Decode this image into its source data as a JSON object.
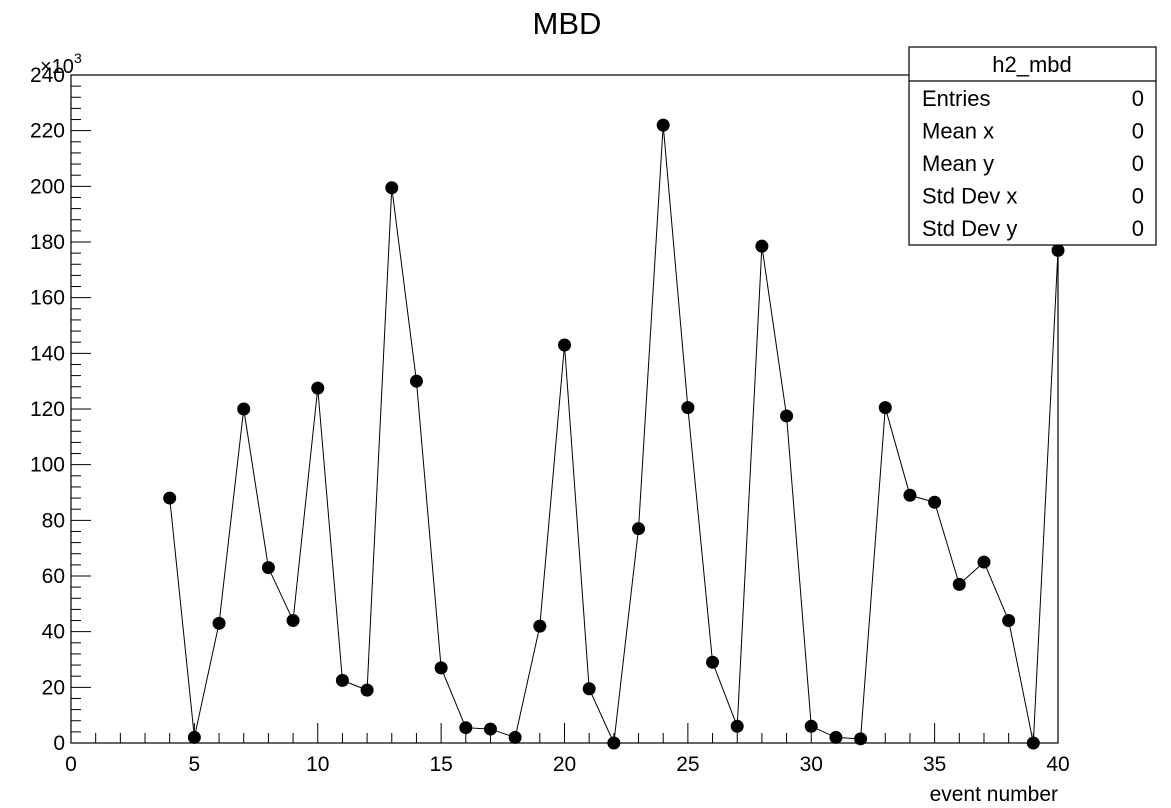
{
  "chart_data": {
    "type": "scatter",
    "title": "MBD",
    "xlabel": "event number",
    "ylabel": "",
    "y_exponent_label": "×10",
    "y_exponent_power": "3",
    "xlim": [
      0,
      40
    ],
    "ylim": [
      0,
      240
    ],
    "x_ticks": [
      0,
      5,
      10,
      15,
      20,
      25,
      30,
      35,
      40
    ],
    "y_ticks": [
      0,
      20,
      40,
      60,
      80,
      100,
      120,
      140,
      160,
      180,
      200,
      220,
      240
    ],
    "connected": true,
    "grid": false,
    "series": [
      {
        "x": [
          4,
          5,
          6,
          7,
          8,
          9,
          10,
          11,
          12,
          13,
          14,
          15,
          16,
          17,
          18,
          19,
          20,
          21,
          22,
          23,
          24,
          25,
          26,
          27,
          28,
          29,
          30,
          31,
          32,
          33,
          34,
          35,
          36,
          37,
          38,
          39,
          40
        ],
        "values": [
          88,
          2,
          43,
          120,
          63,
          44,
          127.5,
          22.5,
          19,
          199.5,
          130,
          27,
          5.5,
          5,
          2,
          42,
          143,
          19.5,
          0,
          77,
          222,
          120.5,
          29,
          6,
          178.5,
          117.5,
          6,
          2,
          1.5,
          120.5,
          89,
          86.5,
          57,
          65,
          44,
          0,
          177
        ]
      }
    ]
  },
  "stats_box": {
    "name": "h2_mbd",
    "rows": [
      {
        "label": "Entries",
        "value": "0"
      },
      {
        "label": "Mean x",
        "value": "0"
      },
      {
        "label": "Mean y",
        "value": "0"
      },
      {
        "label": "Std Dev x",
        "value": "0"
      },
      {
        "label": "Std Dev y",
        "value": "0"
      }
    ]
  }
}
